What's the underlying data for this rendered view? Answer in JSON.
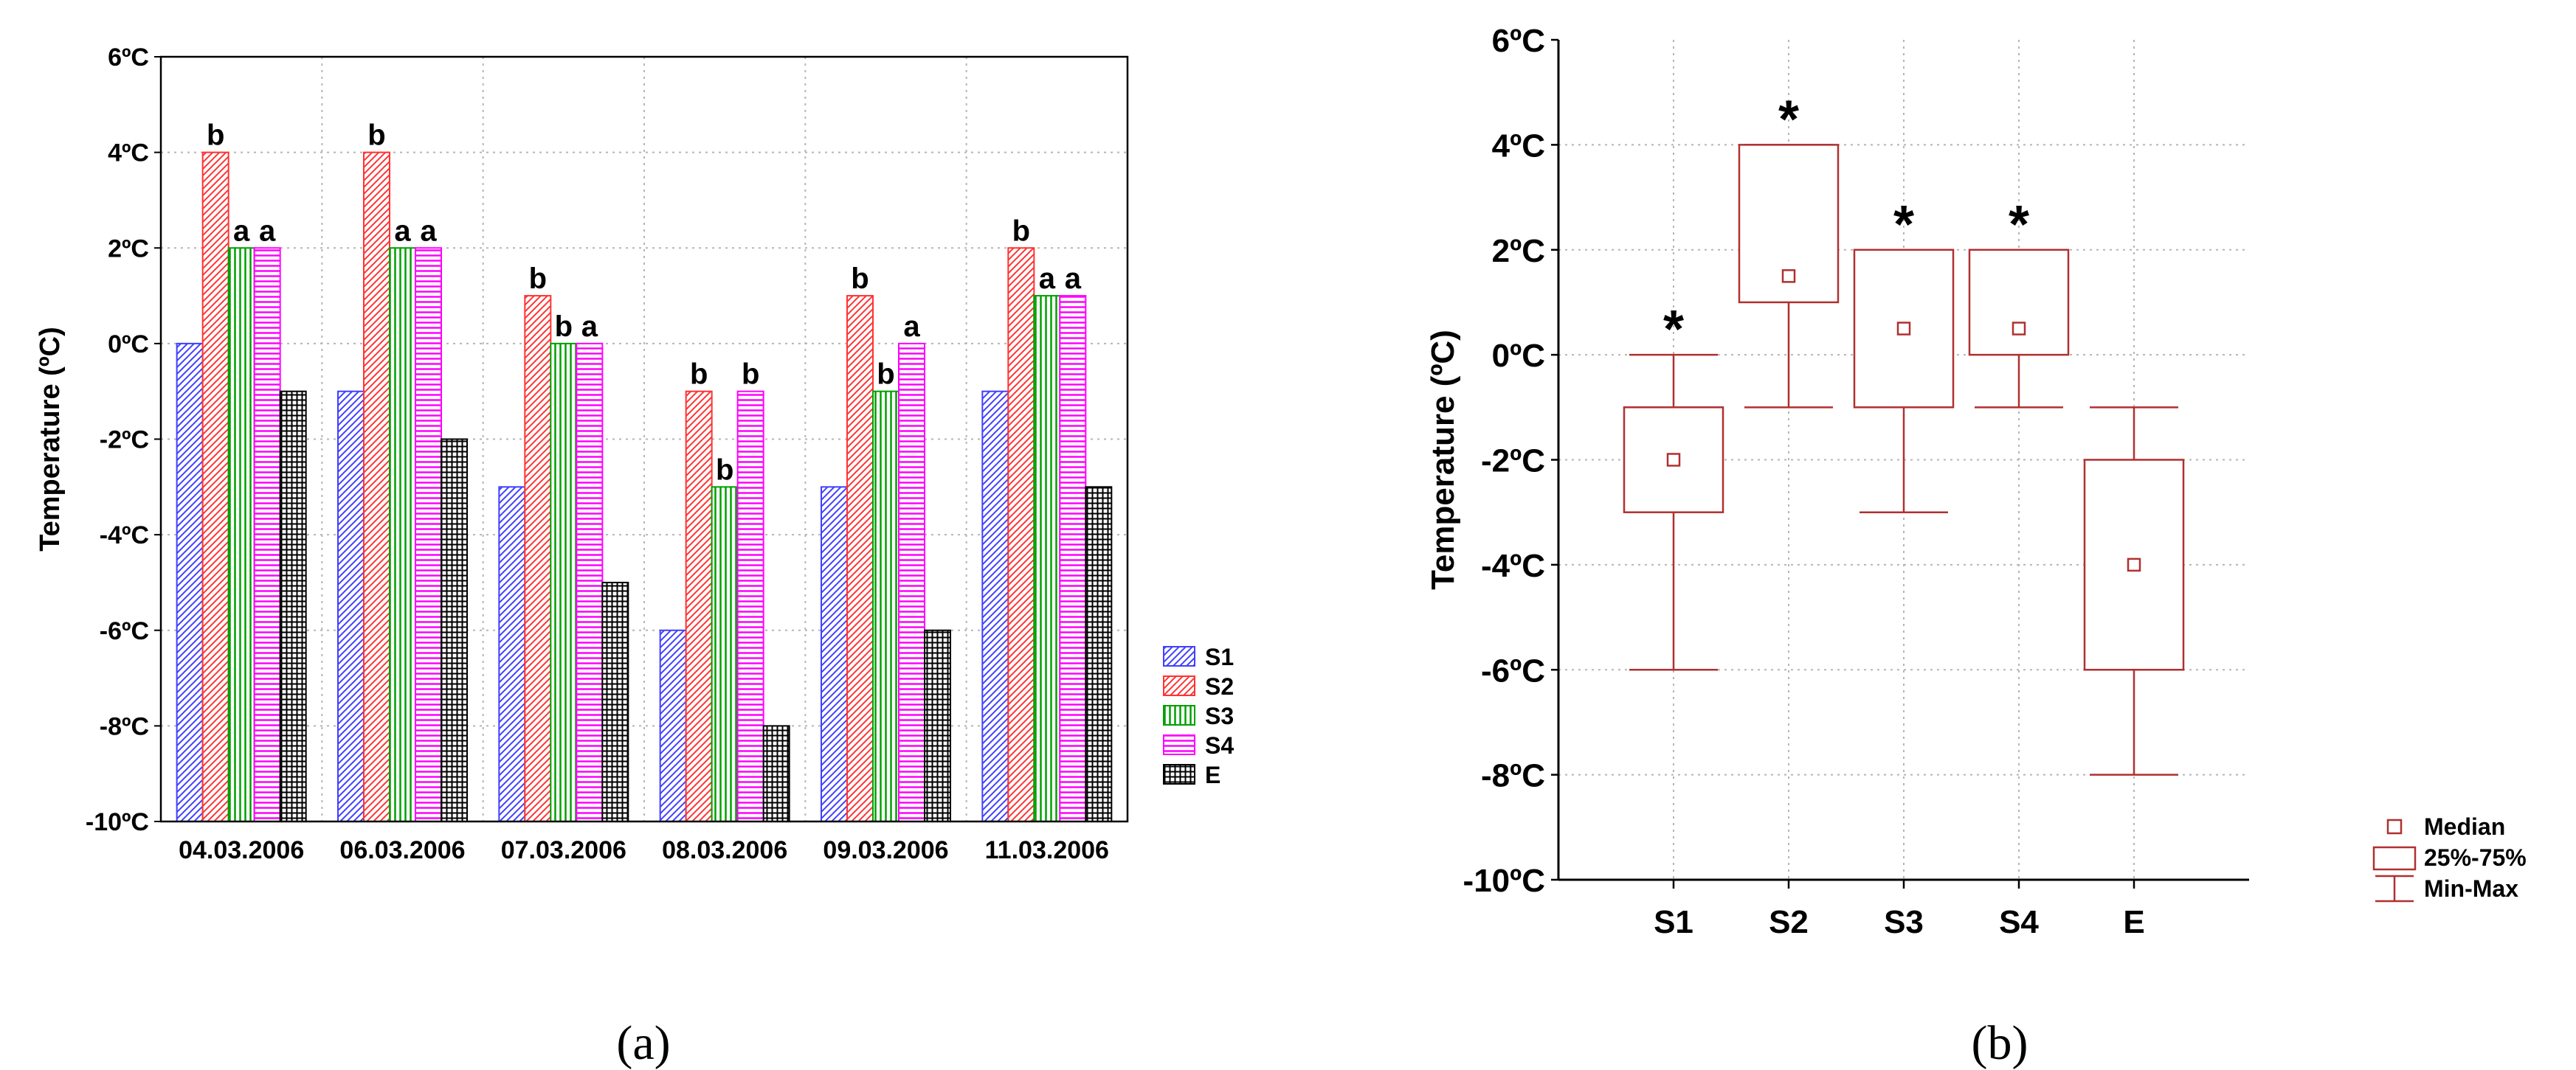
{
  "chart_data": [
    {
      "type": "bar",
      "panel_label": "(a)",
      "ylabel": "Temperature (ºC)",
      "ylim": [
        -10,
        6
      ],
      "yticks": [
        -10,
        -8,
        -6,
        -4,
        -2,
        0,
        2,
        4,
        6
      ],
      "ytick_labels": [
        "-10ºC",
        "-8ºC",
        "-6ºC",
        "-4ºC",
        "-2ºC",
        "0ºC",
        "2ºC",
        "4ºC",
        "6ºC"
      ],
      "grid": true,
      "legend_position": "right",
      "categories": [
        "04.03.2006",
        "06.03.2006",
        "07.03.2006",
        "08.03.2006",
        "09.03.2006",
        "11.03.2006"
      ],
      "series": [
        {
          "name": "S1",
          "color": "#4040ff",
          "pattern": "diag",
          "values": [
            0,
            -1,
            -3,
            -6,
            -3,
            -1
          ]
        },
        {
          "name": "S2",
          "color": "#ff3333",
          "pattern": "diag",
          "values": [
            4,
            4,
            1,
            -1,
            1,
            2
          ]
        },
        {
          "name": "S3",
          "color": "#00a000",
          "pattern": "vert",
          "values": [
            2,
            2,
            0,
            -3,
            -1,
            1
          ]
        },
        {
          "name": "S4",
          "color": "#ff00ff",
          "pattern": "horiz",
          "values": [
            2,
            2,
            0,
            -1,
            0,
            1
          ]
        },
        {
          "name": "E",
          "color": "#000000",
          "pattern": "grid",
          "values": [
            -1,
            -2,
            -5,
            -8,
            -6,
            -3
          ]
        }
      ],
      "annotations": [
        {
          "category": 0,
          "series": 1,
          "text": "b"
        },
        {
          "category": 0,
          "series": 2,
          "text": "a"
        },
        {
          "category": 0,
          "series": 3,
          "text": "a"
        },
        {
          "category": 1,
          "series": 1,
          "text": "b"
        },
        {
          "category": 1,
          "series": 2,
          "text": "a"
        },
        {
          "category": 1,
          "series": 3,
          "text": "a"
        },
        {
          "category": 2,
          "series": 1,
          "text": "b"
        },
        {
          "category": 2,
          "series": 2,
          "text": "b"
        },
        {
          "category": 2,
          "series": 3,
          "text": "a"
        },
        {
          "category": 3,
          "series": 1,
          "text": "b"
        },
        {
          "category": 3,
          "series": 2,
          "text": "b"
        },
        {
          "category": 3,
          "series": 3,
          "text": "b"
        },
        {
          "category": 4,
          "series": 1,
          "text": "b"
        },
        {
          "category": 4,
          "series": 2,
          "text": "b"
        },
        {
          "category": 4,
          "series": 3,
          "text": "a"
        },
        {
          "category": 5,
          "series": 1,
          "text": "b"
        },
        {
          "category": 5,
          "series": 2,
          "text": "a"
        },
        {
          "category": 5,
          "series": 3,
          "text": "a"
        }
      ]
    },
    {
      "type": "box",
      "panel_label": "(b)",
      "ylabel": "Temperature (ºC)",
      "ylim": [
        -10,
        6
      ],
      "yticks": [
        -10,
        -8,
        -6,
        -4,
        -2,
        0,
        2,
        4,
        6
      ],
      "ytick_labels": [
        "-10ºC",
        "-8ºC",
        "-6ºC",
        "-4ºC",
        "-2ºC",
        "0ºC",
        "2ºC",
        "4ºC",
        "6ºC"
      ],
      "grid": true,
      "color": "#b03030",
      "legend_position": "bottom-right",
      "categories": [
        "S1",
        "S2",
        "S3",
        "S4",
        "E"
      ],
      "boxes": [
        {
          "name": "S1",
          "min": -6,
          "q1": -3,
          "median": -2,
          "q3": -1,
          "max": 0,
          "marker": "*"
        },
        {
          "name": "S2",
          "min": -1,
          "q1": 1,
          "median": 1.5,
          "q3": 4,
          "max": 4,
          "marker": "*"
        },
        {
          "name": "S3",
          "min": -3,
          "q1": -1,
          "median": 0.5,
          "q3": 2,
          "max": 2,
          "marker": "*"
        },
        {
          "name": "S4",
          "min": -1,
          "q1": 0,
          "median": 0.5,
          "q3": 2,
          "max": 2,
          "marker": "*"
        },
        {
          "name": "E",
          "min": -8,
          "q1": -6,
          "median": -4,
          "q3": -2,
          "max": -1,
          "marker": ""
        }
      ],
      "legend": [
        {
          "symbol": "median",
          "label": "Median"
        },
        {
          "symbol": "box",
          "label": "25%-75%"
        },
        {
          "symbol": "whisker",
          "label": "Min-Max"
        }
      ]
    }
  ]
}
